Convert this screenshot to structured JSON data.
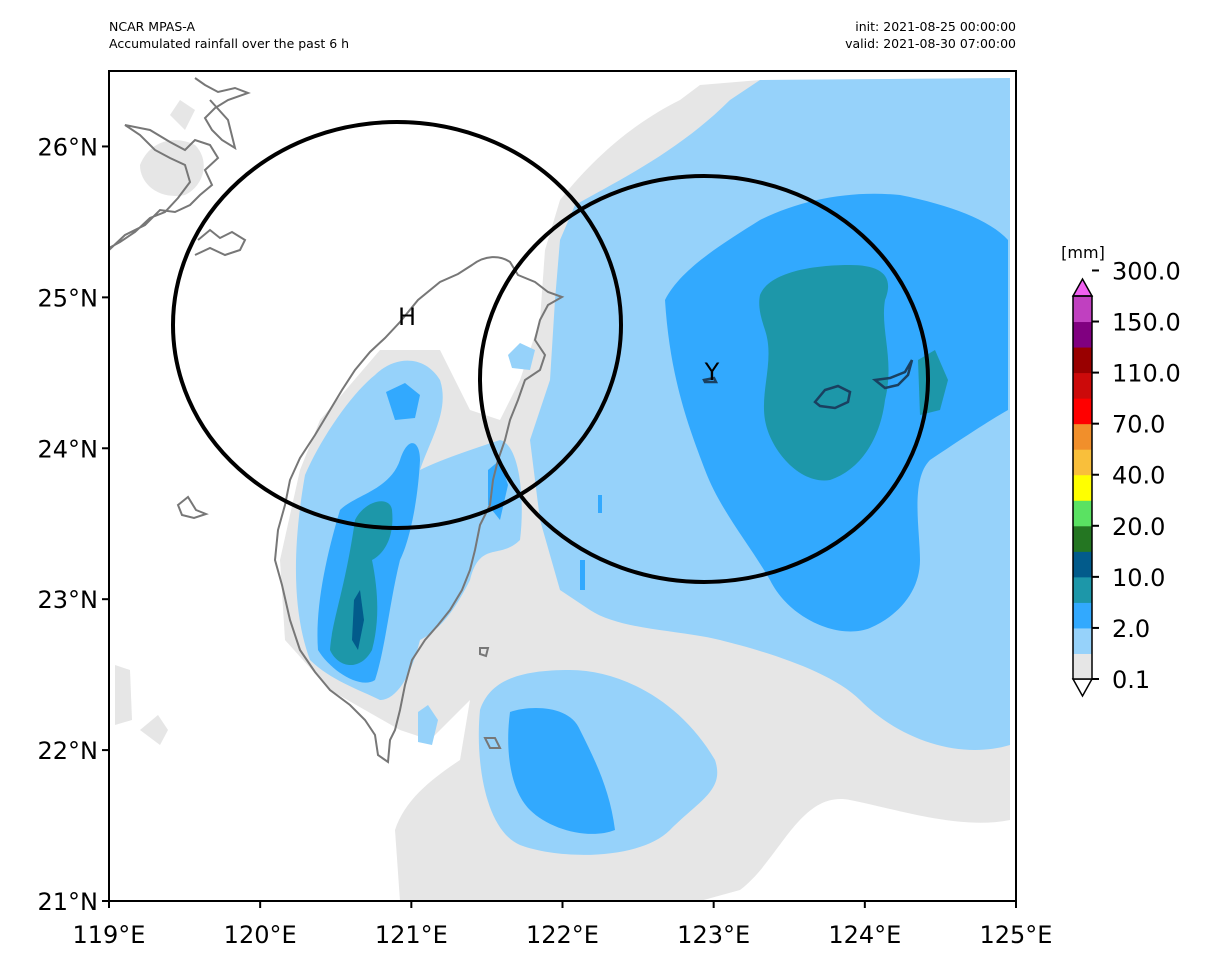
{
  "header": {
    "model": "NCAR MPAS-A",
    "description": "Accumulated rainfall over the past 6 h",
    "init": "init: 2021-08-25 00:00:00",
    "valid": "valid: 2021-08-30 07:00:00"
  },
  "chart_data": {
    "type": "map",
    "x_label_ticks": [
      "119°E",
      "120°E",
      "121°E",
      "122°E",
      "123°E",
      "124°E",
      "125°E"
    ],
    "y_label_ticks": [
      "21°N",
      "22°N",
      "23°N",
      "24°N",
      "25°N",
      "26°N"
    ],
    "lon_range": [
      119,
      125
    ],
    "lat_range": [
      21,
      26.5
    ],
    "variable": "Accumulated rainfall over the past 6 h",
    "units": "[mm]",
    "colorbar": {
      "tick_labels": [
        "0.1",
        "2.0",
        "10.0",
        "20.0",
        "40.0",
        "70.0",
        "110.0",
        "150.0",
        "300.0"
      ],
      "colors_bottom_to_top": [
        "#ffffff",
        "#e6e6e6",
        "#96d2fa",
        "#32a9fe",
        "#1d97a9",
        "#025b8b",
        "#247622",
        "#5ae262",
        "#ffff00",
        "#f9bf3b",
        "#f18f2b",
        "#ff0000",
        "#cc0a0a",
        "#990000",
        "#800080",
        "#c040c0",
        "#f060f0"
      ]
    },
    "markers": [
      {
        "label": "H",
        "lon": 120.98,
        "lat": 24.88
      },
      {
        "label": "Y",
        "lon": 122.98,
        "lat": 24.52
      }
    ],
    "circles": [
      {
        "center_lon": 120.93,
        "center_lat": 24.84,
        "radius_deg": 1.49
      },
      {
        "center_lon": 122.95,
        "center_lat": 24.46,
        "radius_deg": 1.49
      }
    ]
  }
}
